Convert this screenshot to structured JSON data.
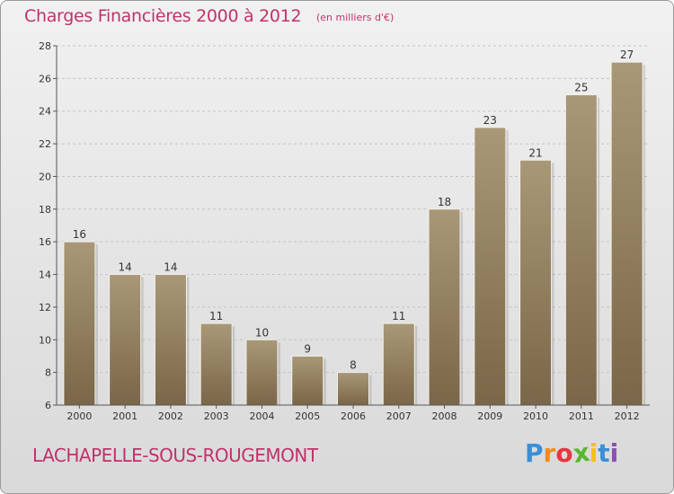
{
  "header": {
    "title": "Charges Financières 2000 à 2012",
    "unit": "(en milliers d'€)"
  },
  "footer": {
    "commune": "LACHAPELLE-SOUS-ROUGEMONT",
    "logo_letters": [
      "P",
      "r",
      "o",
      "x",
      "i",
      "t",
      "i"
    ],
    "logo_colors": [
      "#3a8fd6",
      "#f28c1e",
      "#e6373d",
      "#5cb531",
      "#f5c20f",
      "#3a8fd6",
      "#8b4fb3"
    ]
  },
  "colors": {
    "bar_top": "#a89878",
    "bar_bottom": "#7a6648",
    "title": "#c0326b"
  },
  "chart_data": {
    "type": "bar",
    "title": "Charges Financières 2000 à 2012",
    "subtitle": "(en milliers d'€)",
    "categories": [
      "2000",
      "2001",
      "2002",
      "2003",
      "2004",
      "2005",
      "2006",
      "2007",
      "2008",
      "2009",
      "2010",
      "2011",
      "2012"
    ],
    "values": [
      16,
      14,
      14,
      11,
      10,
      9,
      8,
      11,
      18,
      23,
      21,
      25,
      27
    ],
    "ylim": [
      6,
      28
    ],
    "yticks": [
      6,
      8,
      10,
      12,
      14,
      16,
      18,
      20,
      22,
      24,
      26,
      28
    ],
    "grid": true
  }
}
